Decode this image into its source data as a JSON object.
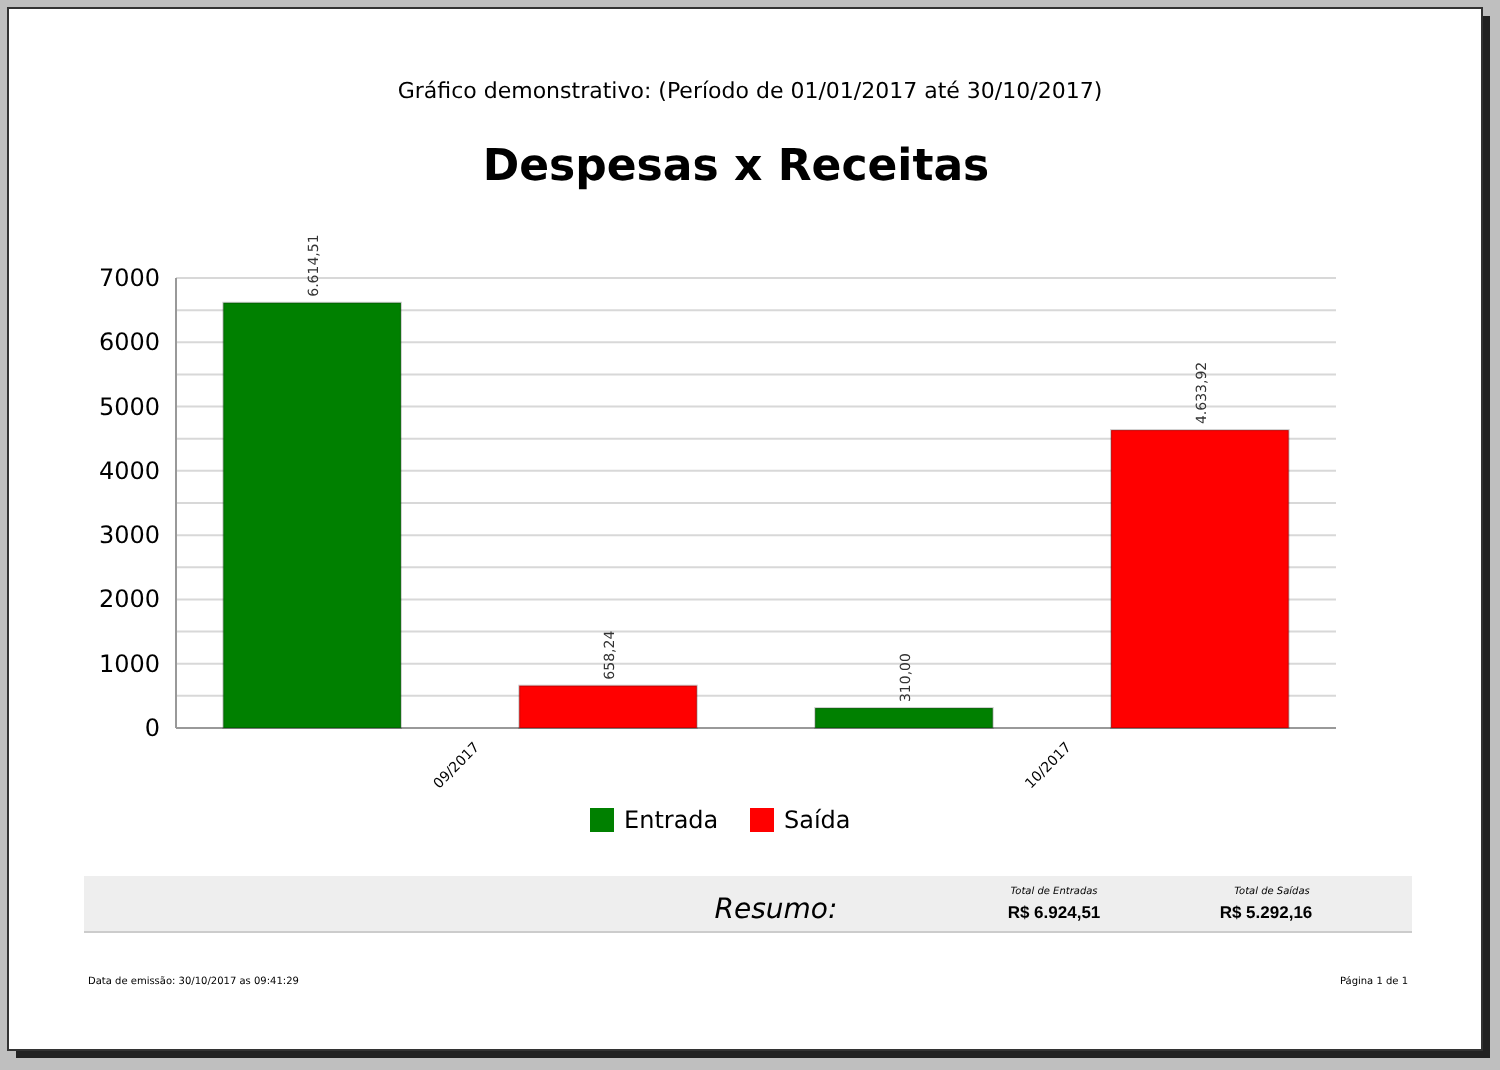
{
  "chart_data": {
    "type": "bar",
    "title": "Despesas x Receitas",
    "subtitle": "Gráfico demonstrativo: (Período de 01/01/2017 até 30/10/2017)",
    "categories": [
      "09/2017",
      "10/2017"
    ],
    "series": [
      {
        "name": "Entrada",
        "color": "#008000",
        "values": [
          6614.51,
          310.0
        ],
        "value_labels": [
          "6.614,51",
          "310,00"
        ]
      },
      {
        "name": "Saída",
        "color": "#ff0000",
        "values": [
          658.24,
          4633.92
        ],
        "value_labels": [
          "658,24",
          "4.633,92"
        ]
      }
    ],
    "ylim": [
      0,
      7000
    ],
    "yticks": [
      0,
      {
        "value": 500,
        "label": null
      },
      1000,
      {
        "value": 1500,
        "label": null
      },
      2000,
      {
        "value": 2500,
        "label": null
      },
      3000,
      {
        "value": 3500,
        "label": null
      },
      4000,
      {
        "value": 4500,
        "label": null
      },
      5000,
      {
        "value": 5500,
        "label": null
      },
      6000,
      {
        "value": 6500,
        "label": null
      },
      7000
    ],
    "grid": "y",
    "legend": "bottom",
    "annotations": [
      "Resumo:",
      "Total de Entradas",
      "R$ 6.924,51",
      "Total de Saídas",
      "R$ 5.292,16",
      "Data de emissão: 30/10/2017 as 09:41:29",
      "Página 1 de 1"
    ]
  }
}
